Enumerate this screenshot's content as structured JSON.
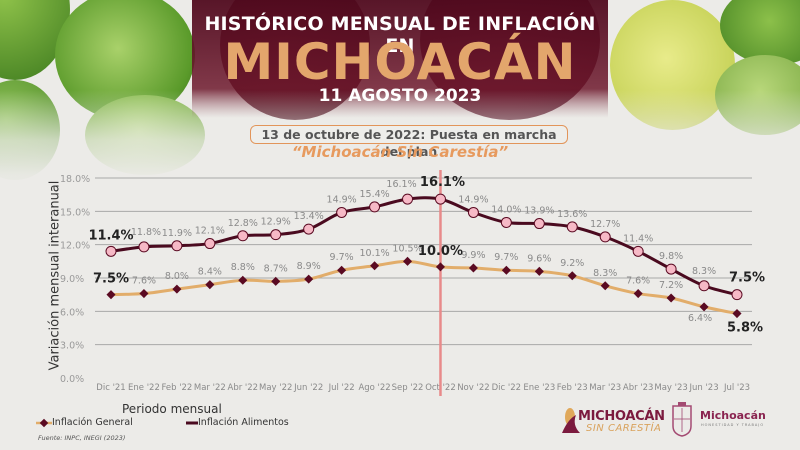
{
  "header": {
    "title_line1": "HISTÓRICO MENSUAL DE INFLACIÓN EN",
    "title_line2": "MICHOACÁN",
    "date": "11 AGOSTO 2023",
    "plan_note": "13 de octubre de 2022: Puesta en marcha del plan",
    "plan_name": "“Michoacán Sin Carestía”"
  },
  "colors": {
    "title_accent": "#e3a66c",
    "header_bg": "#6e1930",
    "alimentos_line": "#4a0a1f",
    "alimentos_marker": "#f6b9c6",
    "general_line": "#e2ad6a",
    "general_marker": "#5a0a22",
    "plan_marker_line": "#e88a8a",
    "gridline": "#a9a9a9"
  },
  "chart_data": {
    "type": "line",
    "title": "Histórico mensual de inflación en Michoacán",
    "xlabel": "Periodo mensual",
    "ylabel": "Variación mensual interanual",
    "ylim": [
      0,
      18
    ],
    "yticks": [
      "0.0%",
      "3.0%",
      "6.0%",
      "9.0%",
      "12.0%",
      "15.0%",
      "18.0%"
    ],
    "grid": true,
    "legend_position": "bottom-left",
    "categories": [
      "Dic '21",
      "Ene '22",
      "Feb '22",
      "Mar '22",
      "Abr '22",
      "May '22",
      "Jun '22",
      "Jul '22",
      "Ago '22",
      "Sep '22",
      "Oct '22",
      "Nov '22",
      "Dic '22",
      "Ene '23",
      "Feb '23",
      "Mar '23",
      "Abr '23",
      "May '23",
      "Jun '23",
      "Jul '23"
    ],
    "series": [
      {
        "name": "Inflación Alimentos",
        "values": [
          11.4,
          11.8,
          11.9,
          12.1,
          12.8,
          12.9,
          13.4,
          14.9,
          15.4,
          16.1,
          16.1,
          14.9,
          14.0,
          13.9,
          13.6,
          12.7,
          11.4,
          9.8,
          8.3,
          7.5
        ],
        "labels": [
          "11.4%",
          "11.8%",
          "11.9%",
          "12.1%",
          "12.8%",
          "12.9%",
          "13.4%",
          "14.9%",
          "15.4%",
          "16.1%",
          "16.1%",
          "14.9%",
          "14.0%",
          "13.9%",
          "13.6%",
          "12.7%",
          "11.4%",
          "9.8%",
          "8.3%",
          "7.5%"
        ]
      },
      {
        "name": "Inflación General",
        "values": [
          7.5,
          7.6,
          8.0,
          8.4,
          8.8,
          8.7,
          8.9,
          9.7,
          10.1,
          10.5,
          10.0,
          9.9,
          9.7,
          9.6,
          9.2,
          8.3,
          7.6,
          7.2,
          6.4,
          5.8
        ],
        "labels": [
          "7.5%",
          "7.6%",
          "8.0%",
          "8.4%",
          "8.8%",
          "8.7%",
          "8.9%",
          "9.7%",
          "10.1%",
          "10.5%",
          "10.0%",
          "9.9%",
          "9.7%",
          "9.6%",
          "9.2%",
          "8.3%",
          "7.6%",
          "7.2%",
          "6.4%",
          "5.8%"
        ]
      }
    ],
    "annotations": [
      {
        "type": "vertical_line",
        "at": "Oct '22",
        "text": "13 de octubre de 2022: Puesta en marcha del plan “Michoacán Sin Carestía”"
      }
    ]
  },
  "legend": {
    "general": "Inflación General",
    "alimentos": "Inflación Alimentos"
  },
  "source": "Fuente: INPC, INEGI (2023)",
  "logos": {
    "program_brand": "MICHOACÁN",
    "program_sub": "SIN CARESTÍA",
    "gov_brand": "Michoacán",
    "gov_motto": "HONESTIDAD Y TRABAJO"
  }
}
